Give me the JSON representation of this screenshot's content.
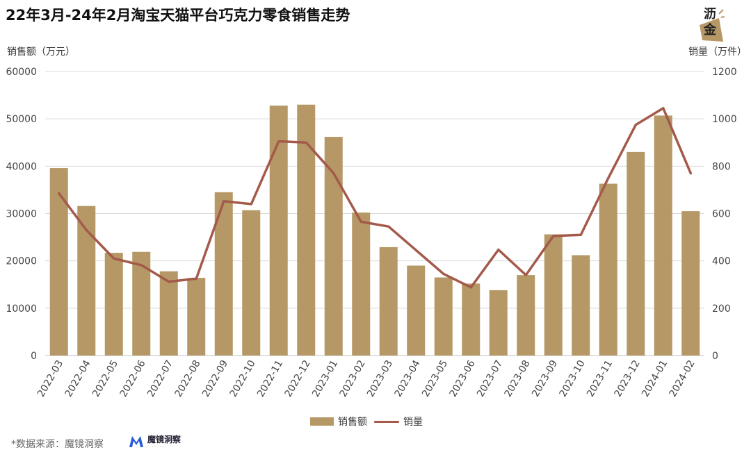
{
  "title": "22年3月-24年2月淘宝天猫平台巧克力零食销售走势",
  "logo": {
    "text_top": "沥",
    "text_bottom": "金"
  },
  "source": {
    "label": "*数据来源：魔镜洞察",
    "logo_name": "魔镜洞察"
  },
  "colors": {
    "bar": "#b59865",
    "line": "#a35a4a",
    "grid": "#d9d9d9"
  },
  "chart_data": {
    "type": "bar",
    "title": "22年3月-24年2月淘宝天猫平台巧克力零食销售走势",
    "y_left_label": "销售额（万元）",
    "y_right_label": "销量（万件）",
    "y_left_lim": [
      0,
      60000
    ],
    "y_right_lim": [
      0,
      1200
    ],
    "y_left_ticks": [
      "0",
      "10000",
      "20000",
      "30000",
      "40000",
      "50000",
      "60000"
    ],
    "y_right_ticks": [
      "0",
      "200",
      "400",
      "600",
      "800",
      "1000",
      "1200"
    ],
    "grid": true,
    "legend_position": "bottom",
    "categories": [
      "2022-03",
      "2022-04",
      "2022-05",
      "2022-06",
      "2022-07",
      "2022-08",
      "2022-09",
      "2022-10",
      "2022-11",
      "2022-12",
      "2023-01",
      "2023-02",
      "2023-03",
      "2023-04",
      "2023-05",
      "2023-06",
      "2023-07",
      "2023-08",
      "2023-09",
      "2023-10",
      "2023-11",
      "2023-12",
      "2024-01",
      "2024-02"
    ],
    "series": [
      {
        "name": "销售额",
        "type": "bar",
        "axis": "left",
        "values": [
          39600,
          31600,
          21700,
          21900,
          17800,
          16400,
          34500,
          30700,
          52800,
          53000,
          46200,
          30200,
          22900,
          19000,
          16500,
          15200,
          13800,
          17000,
          25600,
          21200,
          36300,
          43000,
          50700,
          30500
        ]
      },
      {
        "name": "销量",
        "type": "line",
        "axis": "right",
        "values": [
          685,
          530,
          410,
          382,
          312,
          325,
          652,
          640,
          905,
          900,
          770,
          565,
          545,
          445,
          345,
          288,
          447,
          340,
          505,
          510,
          750,
          975,
          1045,
          770
        ]
      }
    ]
  }
}
